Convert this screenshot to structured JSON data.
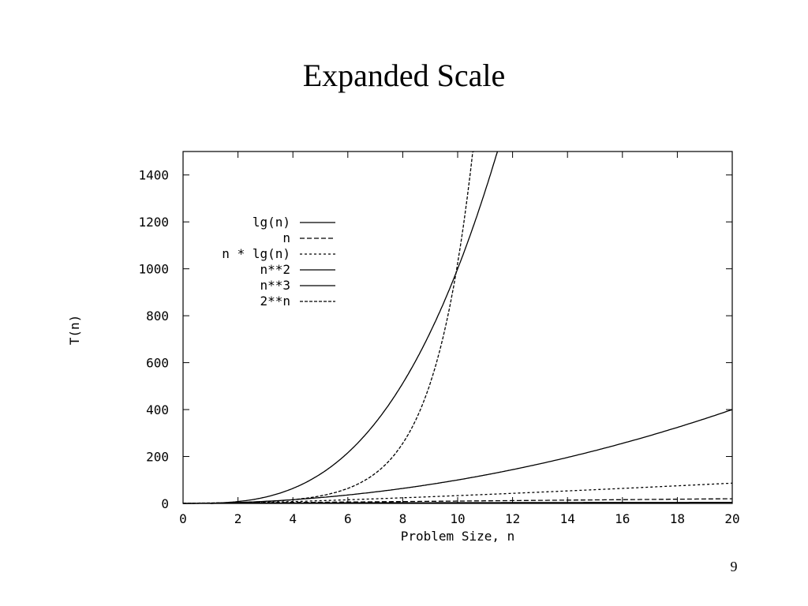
{
  "slide": {
    "title": "Expanded Scale",
    "page_number": "9"
  },
  "chart_data": {
    "type": "line",
    "title": "",
    "xlabel": "Problem Size, n",
    "ylabel": "T(n)",
    "xlim": [
      0,
      20
    ],
    "ylim": [
      0,
      1500
    ],
    "x_ticks": [
      0,
      2,
      4,
      6,
      8,
      10,
      12,
      14,
      16,
      18,
      20
    ],
    "y_ticks": [
      0,
      200,
      400,
      600,
      800,
      1000,
      1200,
      1400
    ],
    "grid": false,
    "legend_position": "top-left",
    "series": [
      {
        "name": "lg(n)",
        "function": "lg",
        "dash": "solid",
        "x": [
          1,
          2,
          4,
          8,
          12,
          16,
          20
        ],
        "values": [
          0,
          1,
          2,
          3,
          3.58,
          4,
          4.32
        ]
      },
      {
        "name": "n",
        "function": "linear",
        "dash": "6,3",
        "x": [
          0,
          5,
          10,
          15,
          20
        ],
        "values": [
          0,
          5,
          10,
          15,
          20
        ]
      },
      {
        "name": "n * lg(n)",
        "function": "nlgn",
        "dash": "3,3",
        "x": [
          1,
          2,
          4,
          8,
          12,
          16,
          20
        ],
        "values": [
          0,
          2,
          8,
          24,
          43,
          64,
          86
        ]
      },
      {
        "name": "n**2",
        "function": "square",
        "dash": "solid",
        "x": [
          0,
          5,
          10,
          15,
          20
        ],
        "values": [
          0,
          25,
          100,
          225,
          400
        ]
      },
      {
        "name": "n**3",
        "function": "cube",
        "dash": "solid",
        "x": [
          0,
          2,
          4,
          6,
          8,
          10,
          11,
          11.4
        ],
        "values": [
          0,
          8,
          64,
          216,
          512,
          1000,
          1331,
          1482
        ]
      },
      {
        "name": "2**n",
        "function": "exp2",
        "dash": "4,2",
        "x": [
          0,
          2,
          4,
          6,
          8,
          10,
          10.5
        ],
        "values": [
          1,
          4,
          16,
          64,
          256,
          1024,
          1448
        ]
      }
    ]
  }
}
